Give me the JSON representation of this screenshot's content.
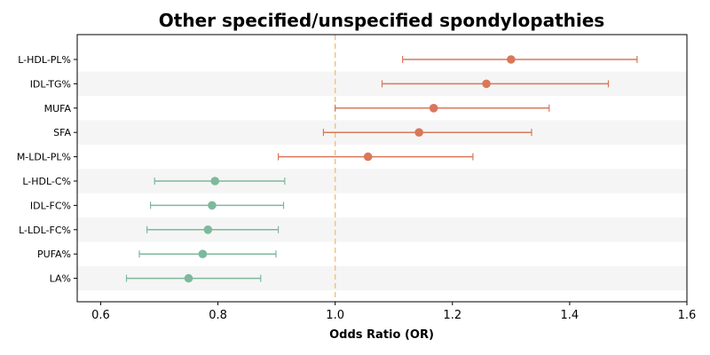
{
  "chart_data": {
    "type": "forest",
    "title": "Other specified/unspecified spondylopathies",
    "xlabel": "Odds Ratio (OR)",
    "ylabel": "",
    "xlim": [
      0.56,
      1.6
    ],
    "xticks": [
      "0.6",
      "0.8",
      "1.0",
      "1.2",
      "1.4",
      "1.6"
    ],
    "xtick_values": [
      0.6,
      0.8,
      1.0,
      1.2,
      1.4,
      1.6
    ],
    "reference_line": 1.0,
    "grid": false,
    "colors": {
      "positive": "#d9775a",
      "negative": "#7db99c",
      "reference": "#f2c27f",
      "band": "#f5f5f5"
    },
    "rows": [
      {
        "label": "L-HDL-PL%",
        "or": 1.3,
        "lower": 1.115,
        "upper": 1.515,
        "direction": "positive"
      },
      {
        "label": "IDL-TG%",
        "or": 1.258,
        "lower": 1.08,
        "upper": 1.466,
        "direction": "positive"
      },
      {
        "label": "MUFA",
        "or": 1.168,
        "lower": 1.0,
        "upper": 1.365,
        "direction": "positive"
      },
      {
        "label": "SFA",
        "or": 1.143,
        "lower": 0.98,
        "upper": 1.335,
        "direction": "positive"
      },
      {
        "label": "M-LDL-PL%",
        "or": 1.056,
        "lower": 0.903,
        "upper": 1.235,
        "direction": "positive"
      },
      {
        "label": "L-HDL-C%",
        "or": 0.795,
        "lower": 0.692,
        "upper": 0.914,
        "direction": "negative"
      },
      {
        "label": "IDL-FC%",
        "or": 0.79,
        "lower": 0.685,
        "upper": 0.912,
        "direction": "negative"
      },
      {
        "label": "L-LDL-FC%",
        "or": 0.783,
        "lower": 0.679,
        "upper": 0.903,
        "direction": "negative"
      },
      {
        "label": "PUFA%",
        "or": 0.774,
        "lower": 0.666,
        "upper": 0.899,
        "direction": "negative"
      },
      {
        "label": "LA%",
        "or": 0.75,
        "lower": 0.644,
        "upper": 0.873,
        "direction": "negative"
      }
    ]
  }
}
